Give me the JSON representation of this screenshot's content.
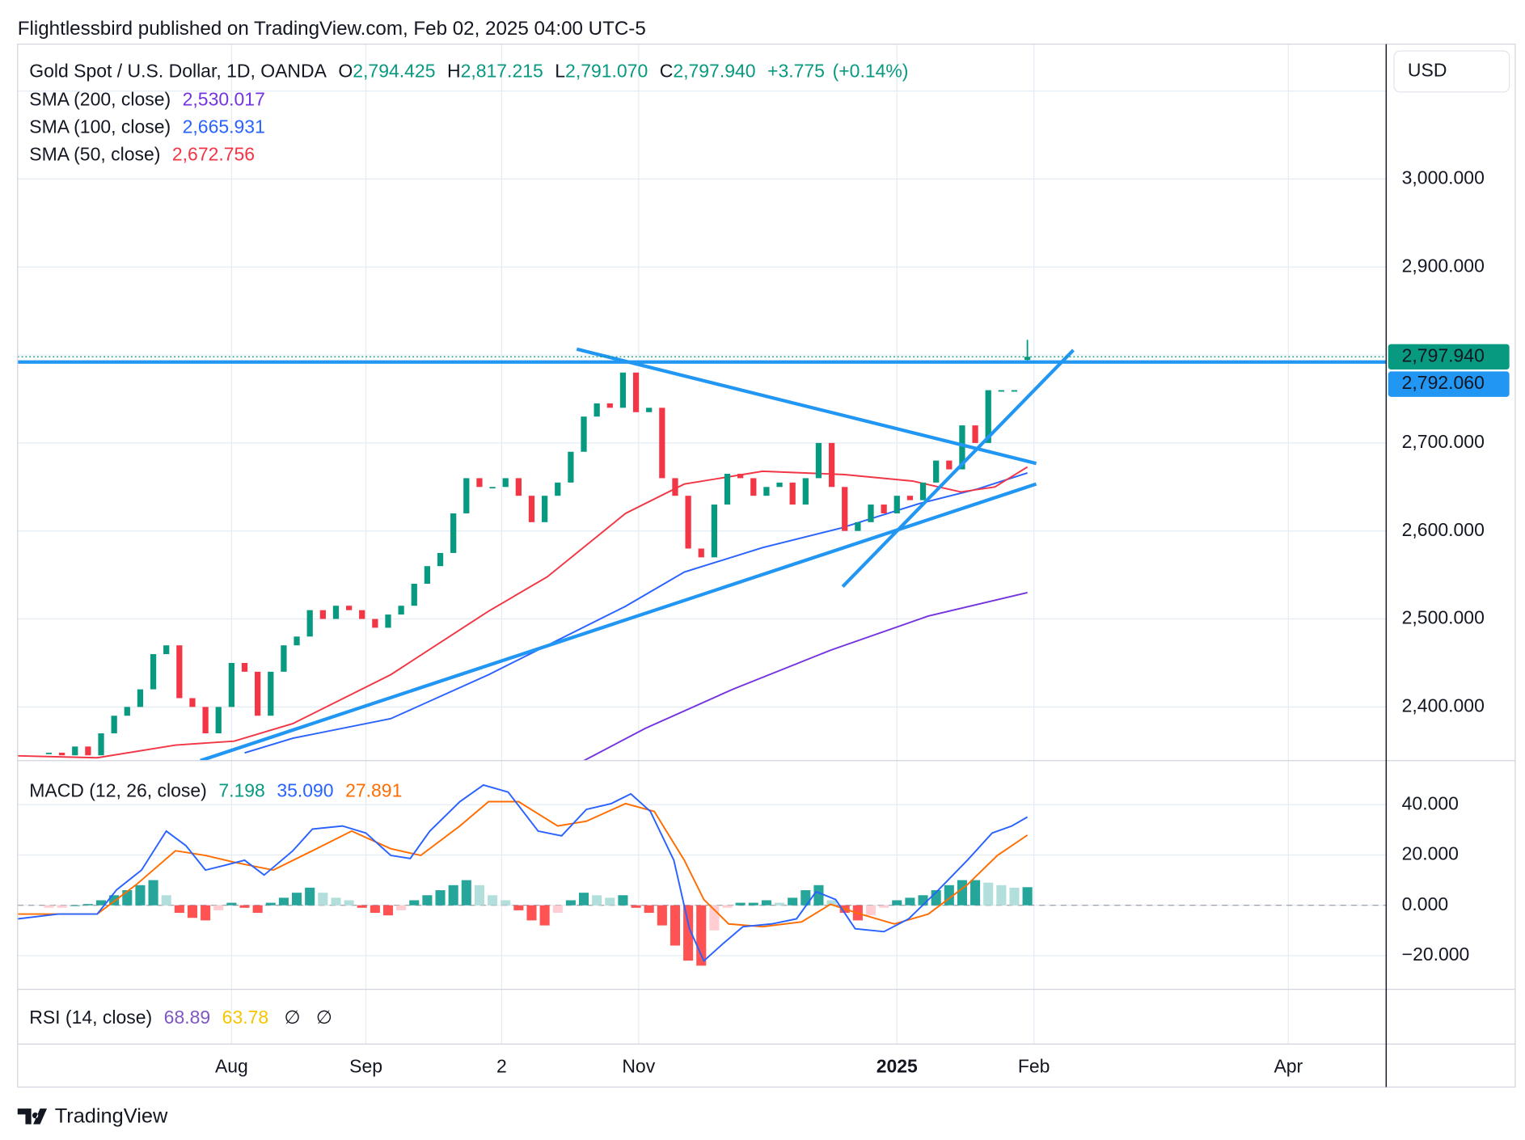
{
  "published": "Flightlessbird published on TradingView.com, Feb 02, 2025 04:00 UTC-5",
  "currency": "USD",
  "brand": "TradingView",
  "chart_data": [
    {
      "type": "candlestick",
      "title": "Gold Spot / U.S. Dollar, 1D, OANDA",
      "ohlc": {
        "open": {
          "prefix": "O",
          "value": 2794.425,
          "label": "2,794.425"
        },
        "high": {
          "prefix": "H",
          "value": 2817.215,
          "label": "2,817.215"
        },
        "low": {
          "prefix": "L",
          "value": 2791.07,
          "label": "2,791.070"
        },
        "close": {
          "prefix": "C",
          "label": "2,797.940"
        },
        "change": "+3.775",
        "change_pct": "(+0.14%)",
        "color": "#089981"
      },
      "candles": {
        "up_color": "#089981",
        "down_color": "#f23645",
        "values": [
          2348,
          2345,
          2355,
          2345,
          2370,
          2390,
          2400,
          2420,
          2460,
          2470,
          2410,
          2400,
          2370,
          2400,
          2450,
          2440,
          2390,
          2440,
          2470,
          2480,
          2510,
          2500,
          2515,
          2510,
          2500,
          2490,
          2505,
          2515,
          2540,
          2560,
          2575,
          2620,
          2660,
          2650,
          2650,
          2660,
          2640,
          2610,
          2640,
          2655,
          2690,
          2730,
          2745,
          2740,
          2780,
          2735,
          2740,
          2660,
          2640,
          2580,
          2570,
          2630,
          2665,
          2660,
          2640,
          2650,
          2655,
          2630,
          2660,
          2700,
          2650,
          2600,
          2610,
          2630,
          2620,
          2640,
          2635,
          2655,
          2680,
          2670,
          2720,
          2700,
          2760,
          2760,
          2760,
          2797.94
        ]
      },
      "series": [
        {
          "name": "SMA (200, close)",
          "legend_label": "2,530.017",
          "color": "#7434e0",
          "x": [
            41.0,
            45.7,
            52.4,
            59.9,
            67.4,
            75
          ],
          "values": [
            2338.9,
            2375.6,
            2420,
            2464.4,
            2503.3,
            2530.017
          ]
        },
        {
          "name": "SMA (100, close)",
          "legend_label": "2,665.931",
          "color": "#2962ff",
          "x": [
            15.0,
            18.7,
            26.2,
            33.7,
            38.2,
            44.2,
            48.7,
            54.7,
            60.7,
            66.7,
            71.2,
            75
          ],
          "values": [
            2347.8,
            2364.4,
            2386.7,
            2436.7,
            2470,
            2514.4,
            2553.3,
            2581.1,
            2603.3,
            2631.1,
            2647.8,
            2665.931
          ]
        },
        {
          "name": "SMA (50, close)",
          "legend_label": "2,672.756",
          "color": "#f23645",
          "x": [
            -2.4,
            3.7,
            9.7,
            14.2,
            18.7,
            26.2,
            33.7,
            38.2,
            44.2,
            48.7,
            54.7,
            61.0,
            66.2,
            69.9,
            72.5,
            75
          ],
          "values": [
            2344.4,
            2342.2,
            2356.7,
            2361.1,
            2381.1,
            2436.7,
            2508.9,
            2547.8,
            2620,
            2653.3,
            2667.8,
            2664,
            2656.7,
            2644.4,
            2650,
            2672.756
          ]
        }
      ],
      "xlim": [
        -2.4,
        102.5
      ],
      "xticks": [
        {
          "value": 14.0,
          "label": "Aug"
        },
        {
          "value": 24.3,
          "label": "Sep"
        },
        {
          "value": 34.7,
          "label": "2"
        },
        {
          "value": 45.2,
          "label": "Nov"
        },
        {
          "value": 65.0,
          "label": "2025",
          "bold": true
        },
        {
          "value": 75.5,
          "label": "Feb"
        },
        {
          "value": 95.0,
          "label": "Apr"
        }
      ],
      "ylim": [
        2339,
        3153.3
      ],
      "yticks": [
        {
          "value": 2400,
          "label": "2,400.000"
        },
        {
          "value": 2500,
          "label": "2,500.000"
        },
        {
          "value": 2600,
          "label": "2,600.000"
        },
        {
          "value": 2700,
          "label": "2,700.000"
        },
        {
          "value": 2900,
          "label": "2,900.000"
        },
        {
          "value": 3000,
          "label": "3,000.000"
        }
      ],
      "ygrid": [
        2800,
        3100
      ],
      "price_labels": [
        {
          "value": 2797.94,
          "label": "2,797.940",
          "color": "#089981",
          "style": "dotted"
        },
        {
          "value": 2792.06,
          "label": "2,792.060",
          "color": "#2196f3",
          "style": "solid"
        }
      ]
    },
    {
      "type": "macd",
      "title": "MACD (12, 26, close)",
      "histogram": {
        "legend_label": "7.198",
        "legend_color": "#089981",
        "colors": [
          "#26a69a",
          "#b2dfdb",
          "#ff5252",
          "#ffcdd2"
        ],
        "values": [
          -1,
          -1,
          0,
          0.5,
          2,
          4,
          6,
          8,
          10,
          4,
          -3,
          -5,
          -6,
          -2,
          1,
          -1,
          -3,
          1,
          3,
          5,
          7,
          5,
          3,
          2,
          -1,
          -3,
          -4,
          -2,
          2,
          4,
          6,
          8,
          10,
          8,
          4,
          2,
          -2,
          -6,
          -8,
          -3,
          2,
          5,
          4,
          3,
          4,
          -1,
          -3,
          -8,
          -16,
          -22,
          -24,
          -10,
          -1,
          1,
          1,
          2,
          1,
          3,
          6,
          8,
          2,
          -3,
          -6,
          -4,
          -1,
          2,
          3,
          4,
          6,
          8,
          10,
          10,
          9,
          8,
          7,
          7.198
        ]
      },
      "series": [
        {
          "legend_label": "35.090",
          "color": "#2962ff",
          "x": [
            -2.4,
            0.7,
            3.7,
            5.2,
            7.1,
            9.0,
            10.5,
            12.0,
            13.5,
            15.0,
            16.5,
            18.7,
            20.2,
            22.5,
            24.3,
            26.2,
            27.7,
            29.2,
            31.5,
            33.3,
            35.2,
            37.5,
            39.3,
            41.2,
            43.1,
            44.6,
            46.1,
            47.9,
            49.1,
            50.2,
            51.7,
            53.2,
            55.4,
            57.3,
            58.8,
            60.3,
            61.8,
            64.0,
            65.9,
            68.2,
            70.4,
            72.3,
            73.8,
            75
          ],
          "values": [
            -5.4,
            -3.5,
            -3.5,
            6.2,
            14.0,
            29.5,
            23.7,
            14.0,
            15.9,
            17.9,
            12.0,
            21.7,
            30.3,
            31.5,
            28.7,
            19.8,
            18.6,
            29.5,
            41.2,
            47.8,
            45.0,
            29.5,
            27.6,
            38.1,
            40.4,
            44.3,
            37.3,
            17.9,
            -9.3,
            -22.1,
            -15.1,
            -8.5,
            -7.4,
            -5.4,
            5.4,
            2.3,
            -9.3,
            -10.5,
            -5.4,
            6.2,
            17.9,
            28.7,
            31.5,
            35.09
          ]
        },
        {
          "legend_label": "27.891",
          "color": "#ff6d00",
          "x": [
            -2.4,
            3.7,
            6.7,
            9.7,
            12.0,
            14.2,
            17.2,
            20.2,
            23.2,
            26.2,
            28.5,
            31.5,
            33.7,
            36.0,
            39.0,
            41.2,
            44.2,
            46.4,
            48.7,
            50.2,
            52.1,
            54.7,
            57.7,
            59.9,
            62.2,
            64.8,
            67.4,
            70.4,
            72.7,
            75
          ],
          "values": [
            -3.5,
            -3.5,
            8.2,
            21.7,
            19.8,
            17.1,
            14.0,
            21.7,
            29.5,
            22.5,
            19.8,
            31.5,
            41.2,
            41.2,
            31.5,
            33.4,
            40.4,
            37.3,
            17.9,
            2.3,
            -7.4,
            -8.5,
            -6.6,
            0.4,
            -3.5,
            -7.4,
            -3.5,
            8.2,
            19.8,
            27.891
          ]
        }
      ],
      "ylim": [
        -33.4,
        57.5
      ],
      "yticks": [
        {
          "value": 40,
          "label": "40.000"
        },
        {
          "value": 20,
          "label": "20.000"
        },
        {
          "value": 0,
          "label": "0.000"
        },
        {
          "value": -20,
          "label": "−20.000"
        }
      ]
    }
  ],
  "rsi": {
    "title": "RSI (14, close)",
    "values": [
      "68.89",
      "63.78",
      "∅",
      "∅"
    ],
    "colors": [
      "#7e57c2",
      "#f7c600",
      "#131722",
      "#131722"
    ]
  }
}
